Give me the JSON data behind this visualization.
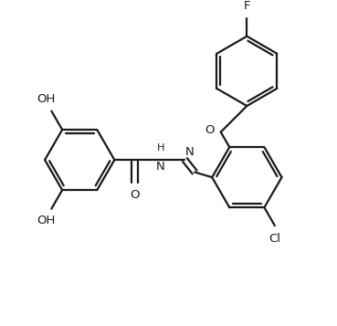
{
  "bg_color": "#ffffff",
  "line_color": "#1a1a1a",
  "line_width": 1.6,
  "font_size": 9.5,
  "figsize": [
    3.69,
    3.57
  ],
  "dpi": 100,
  "xlim": [
    0,
    9.2
  ],
  "ylim": [
    0,
    8.9
  ]
}
